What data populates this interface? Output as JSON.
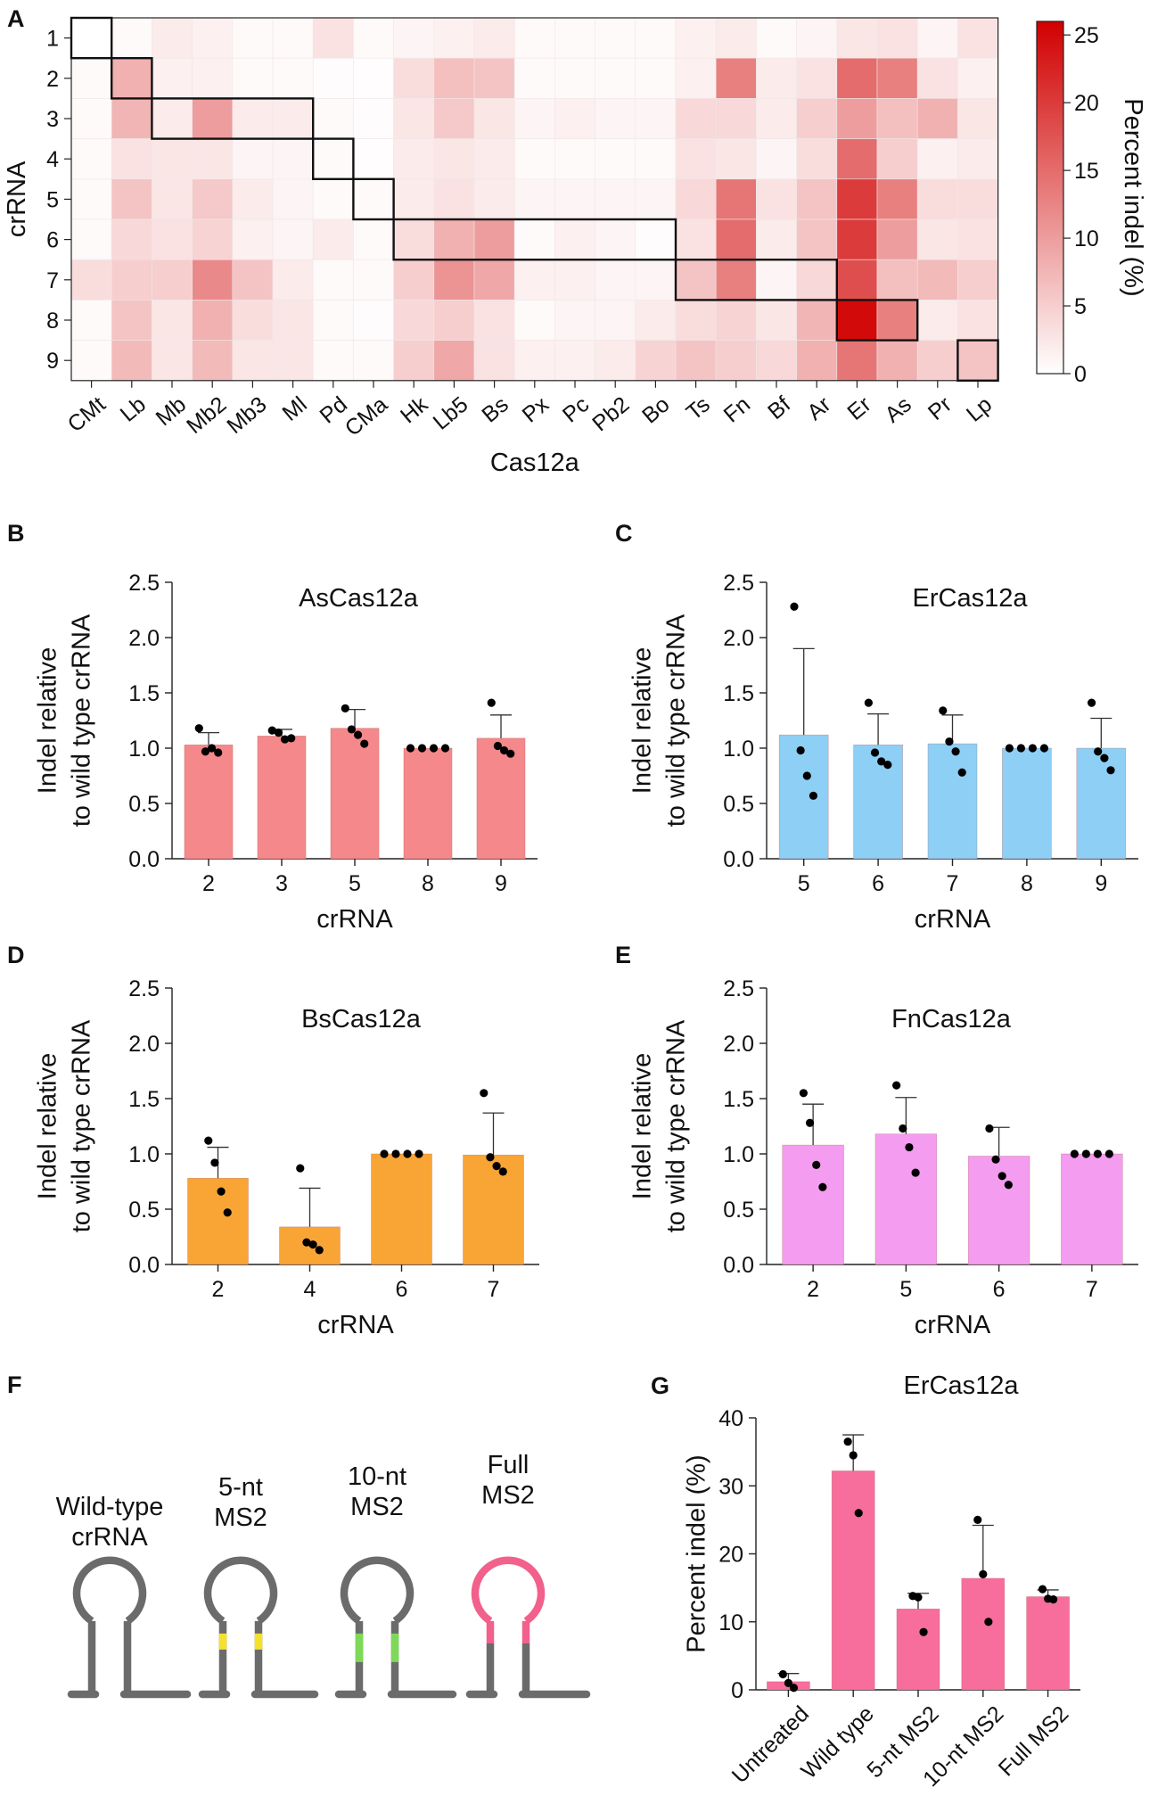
{
  "heatmap": {
    "panel": "A",
    "type": "heatmap",
    "ylabel": "crRNA",
    "xlabel": "Cas12a",
    "colorbar_label": "Percent indel (%)",
    "colorbar_ticks": [
      "0",
      "5",
      "10",
      "15",
      "20",
      "25"
    ],
    "colorbar_range": [
      0,
      26
    ],
    "colors": {
      "low": "#ffffff",
      "high": "#d10000"
    },
    "rows": [
      "1",
      "2",
      "3",
      "4",
      "5",
      "6",
      "7",
      "8",
      "9"
    ],
    "cols": [
      "CMt",
      "Lb",
      "Mb",
      "Mb2",
      "Mb3",
      "Ml",
      "Pd",
      "CMa",
      "Hk",
      "Lb5",
      "Bs",
      "Px",
      "Pc",
      "Pb2",
      "Bo",
      "Ts",
      "Fn",
      "Bf",
      "Ar",
      "Er",
      "As",
      "Pr",
      "Lp"
    ],
    "values": [
      [
        0,
        0.5,
        2,
        1.5,
        0.5,
        0.5,
        3,
        0.5,
        1,
        1.5,
        2,
        0.5,
        0.5,
        0.5,
        0.5,
        1.5,
        2,
        0.5,
        1,
        2.5,
        3,
        1,
        3
      ],
      [
        0.5,
        8,
        1.5,
        1.5,
        0.5,
        0.5,
        0.3,
        0.2,
        3.5,
        6.5,
        6,
        0.5,
        0.5,
        0.5,
        0.5,
        1.5,
        13,
        2,
        3,
        15,
        13,
        3,
        1.5
      ],
      [
        0.5,
        7.5,
        2,
        10,
        2,
        2,
        0.5,
        0.3,
        2.5,
        5.5,
        2.5,
        1,
        1.5,
        1,
        1,
        4,
        4,
        2,
        5,
        10,
        6.5,
        8,
        2.5
      ],
      [
        0.5,
        3,
        2.5,
        2.5,
        1,
        1,
        0.5,
        0.2,
        2,
        2.5,
        2,
        0.5,
        0.5,
        0.5,
        0.5,
        3,
        2.5,
        1,
        3.5,
        15,
        5,
        1.5,
        2
      ],
      [
        0.5,
        6,
        2.5,
        5.5,
        2,
        1,
        0.5,
        0.5,
        2,
        3,
        2,
        1,
        1,
        1,
        1,
        4,
        14,
        3,
        6,
        20,
        13,
        3.5,
        3.5
      ],
      [
        0.5,
        4,
        3,
        4.5,
        1.5,
        1,
        2,
        0.5,
        3.5,
        8,
        10,
        0.5,
        1.5,
        1,
        0.3,
        3,
        15,
        2,
        6,
        20,
        10,
        2.5,
        3
      ],
      [
        3.5,
        5,
        5,
        12,
        6,
        2,
        0.5,
        0.5,
        5,
        11,
        9,
        1.5,
        1.5,
        1,
        1,
        6,
        13,
        1,
        4,
        18,
        6.5,
        7,
        5
      ],
      [
        0.5,
        6,
        2.5,
        8,
        3.5,
        2.5,
        0.5,
        0.3,
        4,
        5,
        3,
        0.5,
        1,
        1,
        2,
        3.5,
        4.5,
        2.5,
        7.5,
        25,
        13,
        2,
        3
      ],
      [
        0.5,
        7,
        2.5,
        7,
        2.5,
        2.5,
        0.5,
        0.5,
        5,
        9,
        3,
        1.5,
        1.5,
        2,
        4.5,
        6,
        5,
        4,
        8,
        14,
        8,
        5,
        6
      ]
    ]
  },
  "charts": [
    {
      "panel": "B",
      "type": "bar",
      "title": "AsCas12a",
      "color": "#f4888a",
      "ylabel_line1": "Indel relative",
      "ylabel_line2": "to wild type crRNA",
      "xlabel": "crRNA",
      "ylim": [
        0,
        2.5
      ],
      "yticks": [
        "0.0",
        "0.5",
        "1.0",
        "1.5",
        "2.0",
        "2.5"
      ],
      "categories": [
        "2",
        "3",
        "5",
        "8",
        "9"
      ],
      "values": [
        1.03,
        1.11,
        1.18,
        1.0,
        1.09
      ],
      "errors": [
        0.11,
        0.06,
        0.17,
        0.0,
        0.21
      ],
      "points": [
        [
          1.18,
          0.97,
          1.0,
          0.96
        ],
        [
          1.16,
          1.14,
          1.08,
          1.09
        ],
        [
          1.36,
          1.17,
          1.12,
          1.04
        ],
        [
          1.0,
          1.0,
          1.0,
          1.0
        ],
        [
          1.41,
          1.02,
          0.98,
          0.95
        ]
      ]
    },
    {
      "panel": "C",
      "type": "bar",
      "title": "ErCas12a",
      "color": "#8ecff5",
      "ylabel_line1": "Indel relative",
      "ylabel_line2": "to wild type crRNA",
      "xlabel": "crRNA",
      "ylim": [
        0,
        2.5
      ],
      "yticks": [
        "0.0",
        "0.5",
        "1.0",
        "1.5",
        "2.0",
        "2.5"
      ],
      "categories": [
        "5",
        "6",
        "7",
        "8",
        "9"
      ],
      "values": [
        1.12,
        1.03,
        1.04,
        1.0,
        1.0
      ],
      "errors": [
        0.78,
        0.28,
        0.26,
        0.0,
        0.27
      ],
      "points": [
        [
          2.28,
          0.98,
          0.75,
          0.57
        ],
        [
          1.41,
          0.96,
          0.88,
          0.85
        ],
        [
          1.34,
          1.06,
          0.97,
          0.78
        ],
        [
          1.0,
          1.0,
          1.0,
          1.0
        ],
        [
          1.41,
          0.97,
          0.91,
          0.8
        ]
      ]
    },
    {
      "panel": "D",
      "type": "bar",
      "title": "BsCas12a",
      "color": "#f9a535",
      "ylabel_line1": "Indel relative",
      "ylabel_line2": "to wild type crRNA",
      "xlabel": "crRNA",
      "ylim": [
        0,
        2.5
      ],
      "yticks": [
        "0.0",
        "0.5",
        "1.0",
        "1.5",
        "2.0",
        "2.5"
      ],
      "categories": [
        "2",
        "4",
        "6",
        "7"
      ],
      "values": [
        0.78,
        0.34,
        1.0,
        0.99
      ],
      "errors": [
        0.28,
        0.35,
        0.0,
        0.38
      ],
      "points": [
        [
          1.12,
          0.92,
          0.66,
          0.47
        ],
        [
          0.87,
          0.2,
          0.18,
          0.13
        ],
        [
          1.0,
          1.0,
          1.0,
          1.0
        ],
        [
          1.55,
          0.97,
          0.89,
          0.84
        ]
      ]
    },
    {
      "panel": "E",
      "type": "bar",
      "title": "FnCas12a",
      "color": "#f49cf0",
      "ylabel_line1": "Indel relative",
      "ylabel_line2": "to wild type crRNA",
      "xlabel": "crRNA",
      "ylim": [
        0,
        2.5
      ],
      "yticks": [
        "0.0",
        "0.5",
        "1.0",
        "1.5",
        "2.0",
        "2.5"
      ],
      "categories": [
        "2",
        "5",
        "6",
        "7"
      ],
      "values": [
        1.08,
        1.18,
        0.98,
        1.0
      ],
      "errors": [
        0.37,
        0.33,
        0.26,
        0.0
      ],
      "points": [
        [
          1.55,
          1.28,
          0.9,
          0.7
        ],
        [
          1.62,
          1.23,
          1.06,
          0.83
        ],
        [
          1.23,
          0.95,
          0.8,
          0.72
        ],
        [
          1.0,
          1.0,
          1.0,
          1.0
        ]
      ]
    },
    {
      "panel": "G",
      "type": "bar",
      "title": "ErCas12a",
      "color": "#f76e9c",
      "ylabel_line1": "Percent indel (%)",
      "ylabel_line2": "",
      "xlabel": "",
      "ylim": [
        0,
        40
      ],
      "yticks": [
        "0",
        "10",
        "20",
        "30",
        "40"
      ],
      "categories": [
        "Untreated",
        "Wild type",
        "5-nt MS2",
        "10-nt MS2",
        "Full MS2"
      ],
      "values": [
        1.2,
        32.2,
        11.9,
        16.4,
        13.7
      ],
      "errors": [
        1.2,
        5.3,
        2.3,
        7.8,
        1.0
      ],
      "points": [
        [
          2.3,
          1.0,
          0.3
        ],
        [
          36.5,
          34.5,
          26.0
        ],
        [
          13.8,
          13.6,
          8.5
        ],
        [
          25.0,
          17.0,
          10.0
        ],
        [
          14.8,
          13.4,
          13.3
        ]
      ]
    }
  ],
  "panelF": {
    "panel": "F",
    "colors": {
      "stem": "#6b6b6b",
      "yellow": "#f5e12c",
      "green": "#7ed957",
      "pink": "#f2608c"
    },
    "labels": [
      {
        "line1": "Wild-type",
        "line2": "crRNA"
      },
      {
        "line1": "5-nt",
        "line2": "MS2"
      },
      {
        "line1": "10-nt",
        "line2": "MS2"
      },
      {
        "line1": "Full",
        "line2": "MS2"
      }
    ]
  }
}
